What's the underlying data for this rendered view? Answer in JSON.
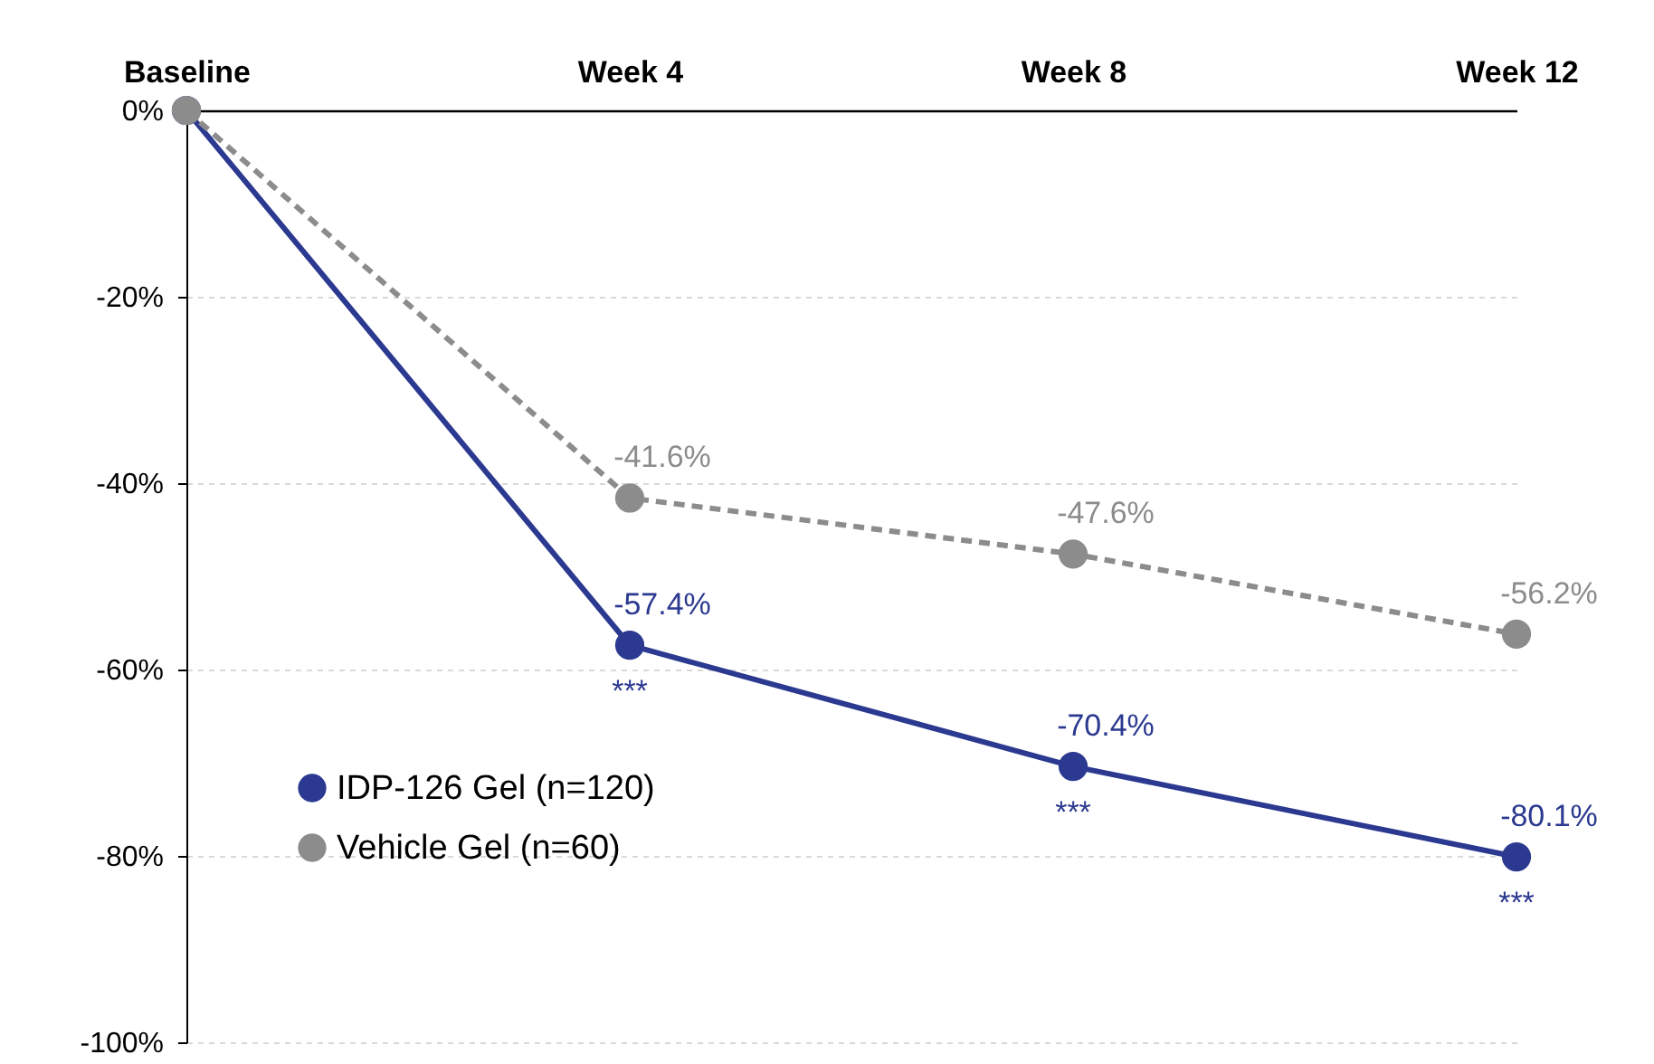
{
  "chart_data": {
    "type": "line",
    "categories": [
      "Baseline",
      "Week 4",
      "Week 8",
      "Week 12"
    ],
    "series": [
      {
        "name": "IDP-126 Gel (n=120)",
        "color": "#2b3990",
        "values": [
          0,
          -57.4,
          -70.4,
          -80.1
        ],
        "value_labels": [
          null,
          "-57.4%",
          "-70.4%",
          "-80.1%"
        ],
        "line_style": "solid"
      },
      {
        "name": "Vehicle Gel (n=60)",
        "color": "#8c8c8c",
        "values": [
          0,
          -41.6,
          -47.6,
          -56.2
        ],
        "value_labels": [
          null,
          "-41.6%",
          "-47.6%",
          "-56.2%"
        ],
        "line_style": "dashed"
      }
    ],
    "ylim": [
      -100,
      0
    ],
    "yticks": [
      {
        "value": 0,
        "label": "0%"
      },
      {
        "value": -20,
        "label": "-20%"
      },
      {
        "value": -40,
        "label": "-40%"
      },
      {
        "value": -60,
        "label": "-60%"
      },
      {
        "value": -80,
        "label": "-80%"
      },
      {
        "value": -100,
        "label": "-100%"
      }
    ],
    "annotations": [
      {
        "text": "***",
        "x": "Week 4",
        "y": -57.4
      },
      {
        "text": "***",
        "x": "Week 8",
        "y": -70.4
      },
      {
        "text": "***",
        "x": "Week 12",
        "y": -80.1
      }
    ],
    "grid": "y",
    "legend": "bottom left",
    "marker": "circle"
  }
}
